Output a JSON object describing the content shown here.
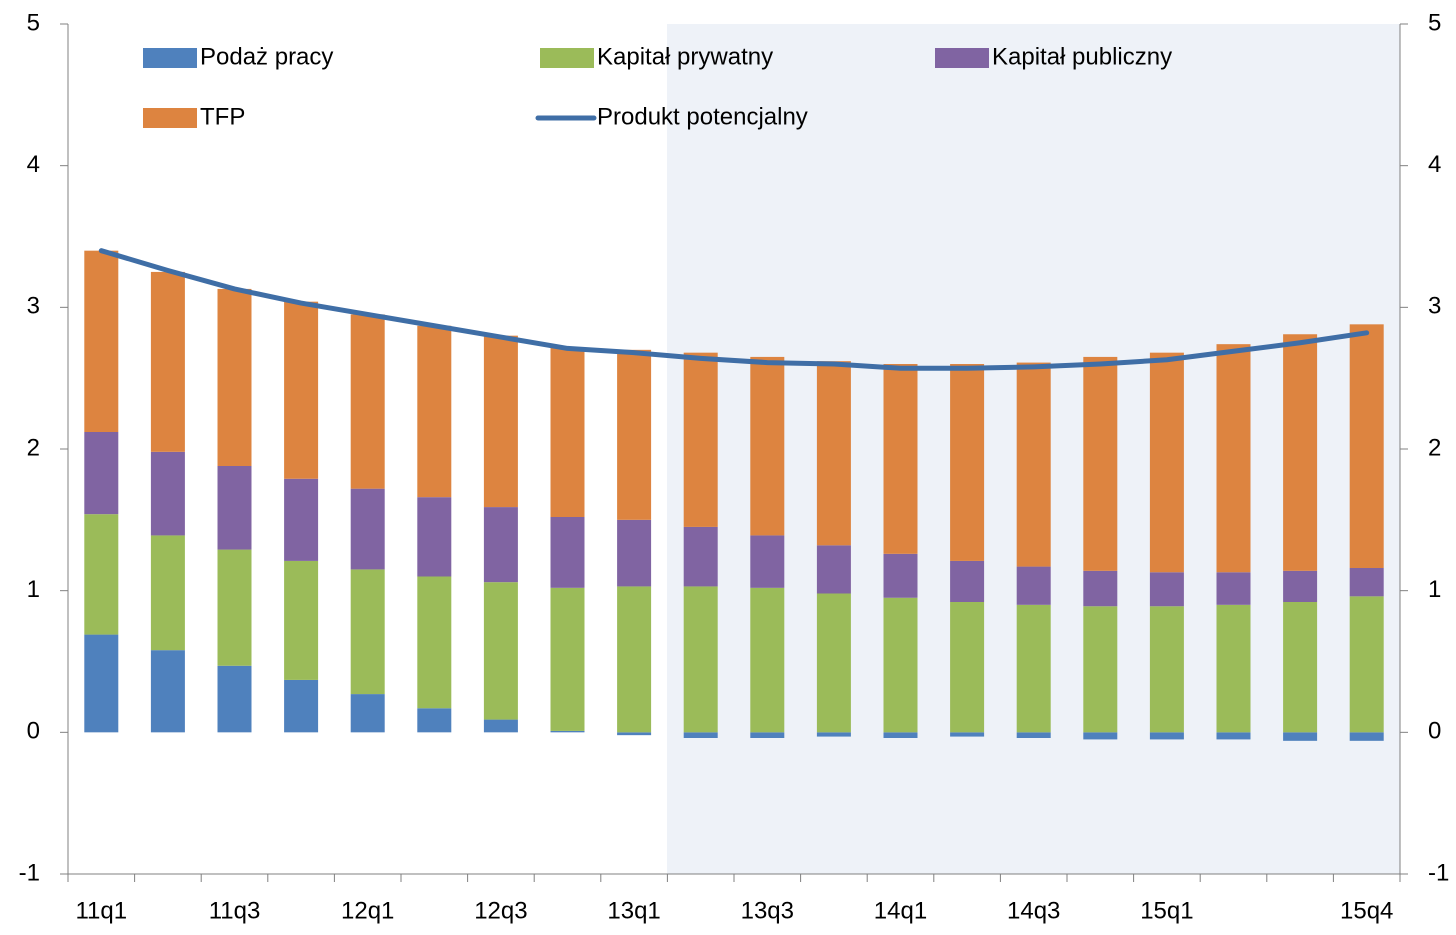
{
  "chart_data": {
    "type": "stacked-bar-line",
    "categories": [
      "11q1",
      null,
      "11q3",
      null,
      "12q1",
      null,
      "12q3",
      null,
      "13q1",
      null,
      "13q3",
      null,
      "14q1",
      null,
      "14q3",
      null,
      "15q1",
      null,
      null,
      "15q4"
    ],
    "series": [
      {
        "name": "Podaż pracy",
        "color": "#4f81bd",
        "type": "bar",
        "values": [
          0.69,
          0.58,
          0.47,
          0.37,
          0.27,
          0.17,
          0.09,
          0.01,
          -0.02,
          -0.04,
          -0.04,
          -0.03,
          -0.04,
          -0.03,
          -0.04,
          -0.05,
          -0.05,
          -0.05,
          -0.06,
          -0.06
        ]
      },
      {
        "name": "Kapitał prywatny",
        "color": "#9bbb59",
        "type": "bar",
        "values": [
          0.85,
          0.81,
          0.82,
          0.84,
          0.88,
          0.93,
          0.97,
          1.01,
          1.03,
          1.03,
          1.02,
          0.98,
          0.95,
          0.92,
          0.9,
          0.89,
          0.89,
          0.9,
          0.92,
          0.96
        ]
      },
      {
        "name": "Kapitał publiczny",
        "color": "#8064a2",
        "type": "bar",
        "values": [
          0.58,
          0.59,
          0.59,
          0.58,
          0.57,
          0.56,
          0.53,
          0.5,
          0.47,
          0.42,
          0.37,
          0.34,
          0.31,
          0.29,
          0.27,
          0.25,
          0.24,
          0.23,
          0.22,
          0.2
        ]
      },
      {
        "name": "TFP",
        "color": "#dd8440",
        "type": "bar",
        "values": [
          1.28,
          1.27,
          1.25,
          1.25,
          1.23,
          1.21,
          1.21,
          1.2,
          1.2,
          1.23,
          1.26,
          1.3,
          1.34,
          1.39,
          1.44,
          1.51,
          1.55,
          1.61,
          1.67,
          1.72
        ]
      },
      {
        "name": "Produkt potencjalny",
        "color": "#3f6ea6",
        "type": "line",
        "values": [
          3.4,
          3.26,
          3.13,
          3.03,
          2.95,
          2.87,
          2.79,
          2.71,
          2.68,
          2.64,
          2.61,
          2.6,
          2.57,
          2.57,
          2.58,
          2.6,
          2.63,
          2.69,
          2.75,
          2.82
        ]
      }
    ],
    "ylim": [
      -1,
      5
    ],
    "yticks": [
      -1,
      0,
      1,
      2,
      3,
      4,
      5
    ],
    "y2lim": [
      -1,
      5
    ],
    "y2ticks": [
      -1,
      0,
      1,
      2,
      3,
      4,
      5
    ]
  }
}
